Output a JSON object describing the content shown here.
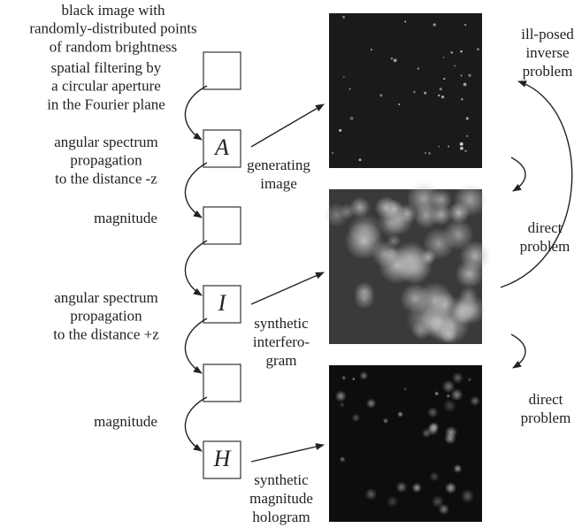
{
  "left_steps": [
    [
      "black image with",
      "randomly-distributed points",
      "of random brightness"
    ],
    [
      "spatial filtering by",
      "a circular aperture",
      "in the Fourier plane"
    ],
    [
      "angular spectrum",
      "propagation",
      "to the distance -z"
    ],
    [
      "magnitude"
    ],
    [
      "angular spectrum",
      "propagation",
      "to the distance +z"
    ],
    [
      "magnitude"
    ]
  ],
  "box_labels": [
    "A",
    "I",
    "H"
  ],
  "image_captions": [
    [
      "generating",
      "image"
    ],
    [
      "synthetic",
      "interfero-",
      "gram"
    ],
    [
      "synthetic",
      "magnitude",
      "hologram"
    ]
  ],
  "right_notes": [
    [
      "ill-posed",
      "inverse",
      "problem"
    ],
    [
      "direct",
      "problem"
    ],
    [
      "direct",
      "problem"
    ]
  ]
}
